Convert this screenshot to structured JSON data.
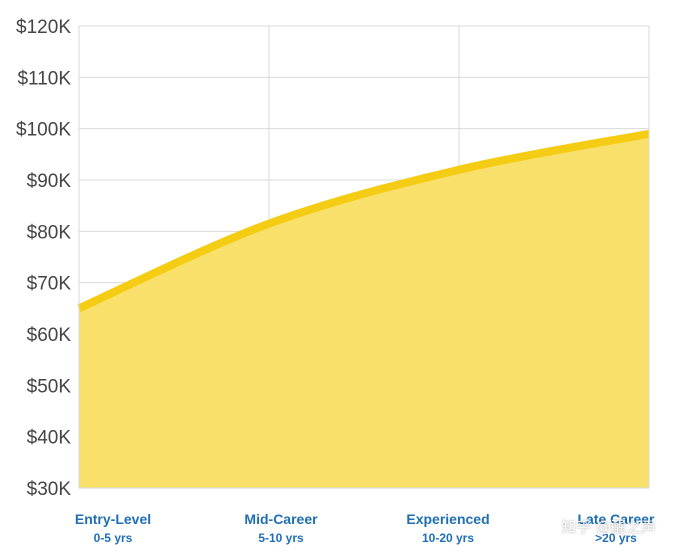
{
  "chart_data": {
    "type": "area",
    "title": "",
    "xlabel": "",
    "ylabel": "",
    "categories": [
      {
        "label": "Entry-Level",
        "sublabel": "0-5 yrs"
      },
      {
        "label": "Mid-Career",
        "sublabel": "5-10 yrs"
      },
      {
        "label": "Experienced",
        "sublabel": "10-20 yrs"
      },
      {
        "label": "Late Career",
        "sublabel": ">20 yrs"
      }
    ],
    "series": [
      {
        "values": [
          65000,
          81500,
          92000,
          99000
        ]
      }
    ],
    "ylim": [
      30000,
      120000
    ],
    "yticks": [
      30000,
      40000,
      50000,
      60000,
      70000,
      80000,
      90000,
      100000,
      110000,
      120000
    ],
    "ytick_labels": [
      "$30K",
      "$40K",
      "$50K",
      "$60K",
      "$70K",
      "$80K",
      "$90K",
      "$100K",
      "$110K",
      "$120K"
    ],
    "grid": true,
    "colors": {
      "line": "#f5cc14",
      "fill": "#f9e06a",
      "grid": "#d9d9d9",
      "xlabel": "#1f6fb5",
      "ylabel": "#444444"
    }
  },
  "watermark": "知乎 @醒之声"
}
